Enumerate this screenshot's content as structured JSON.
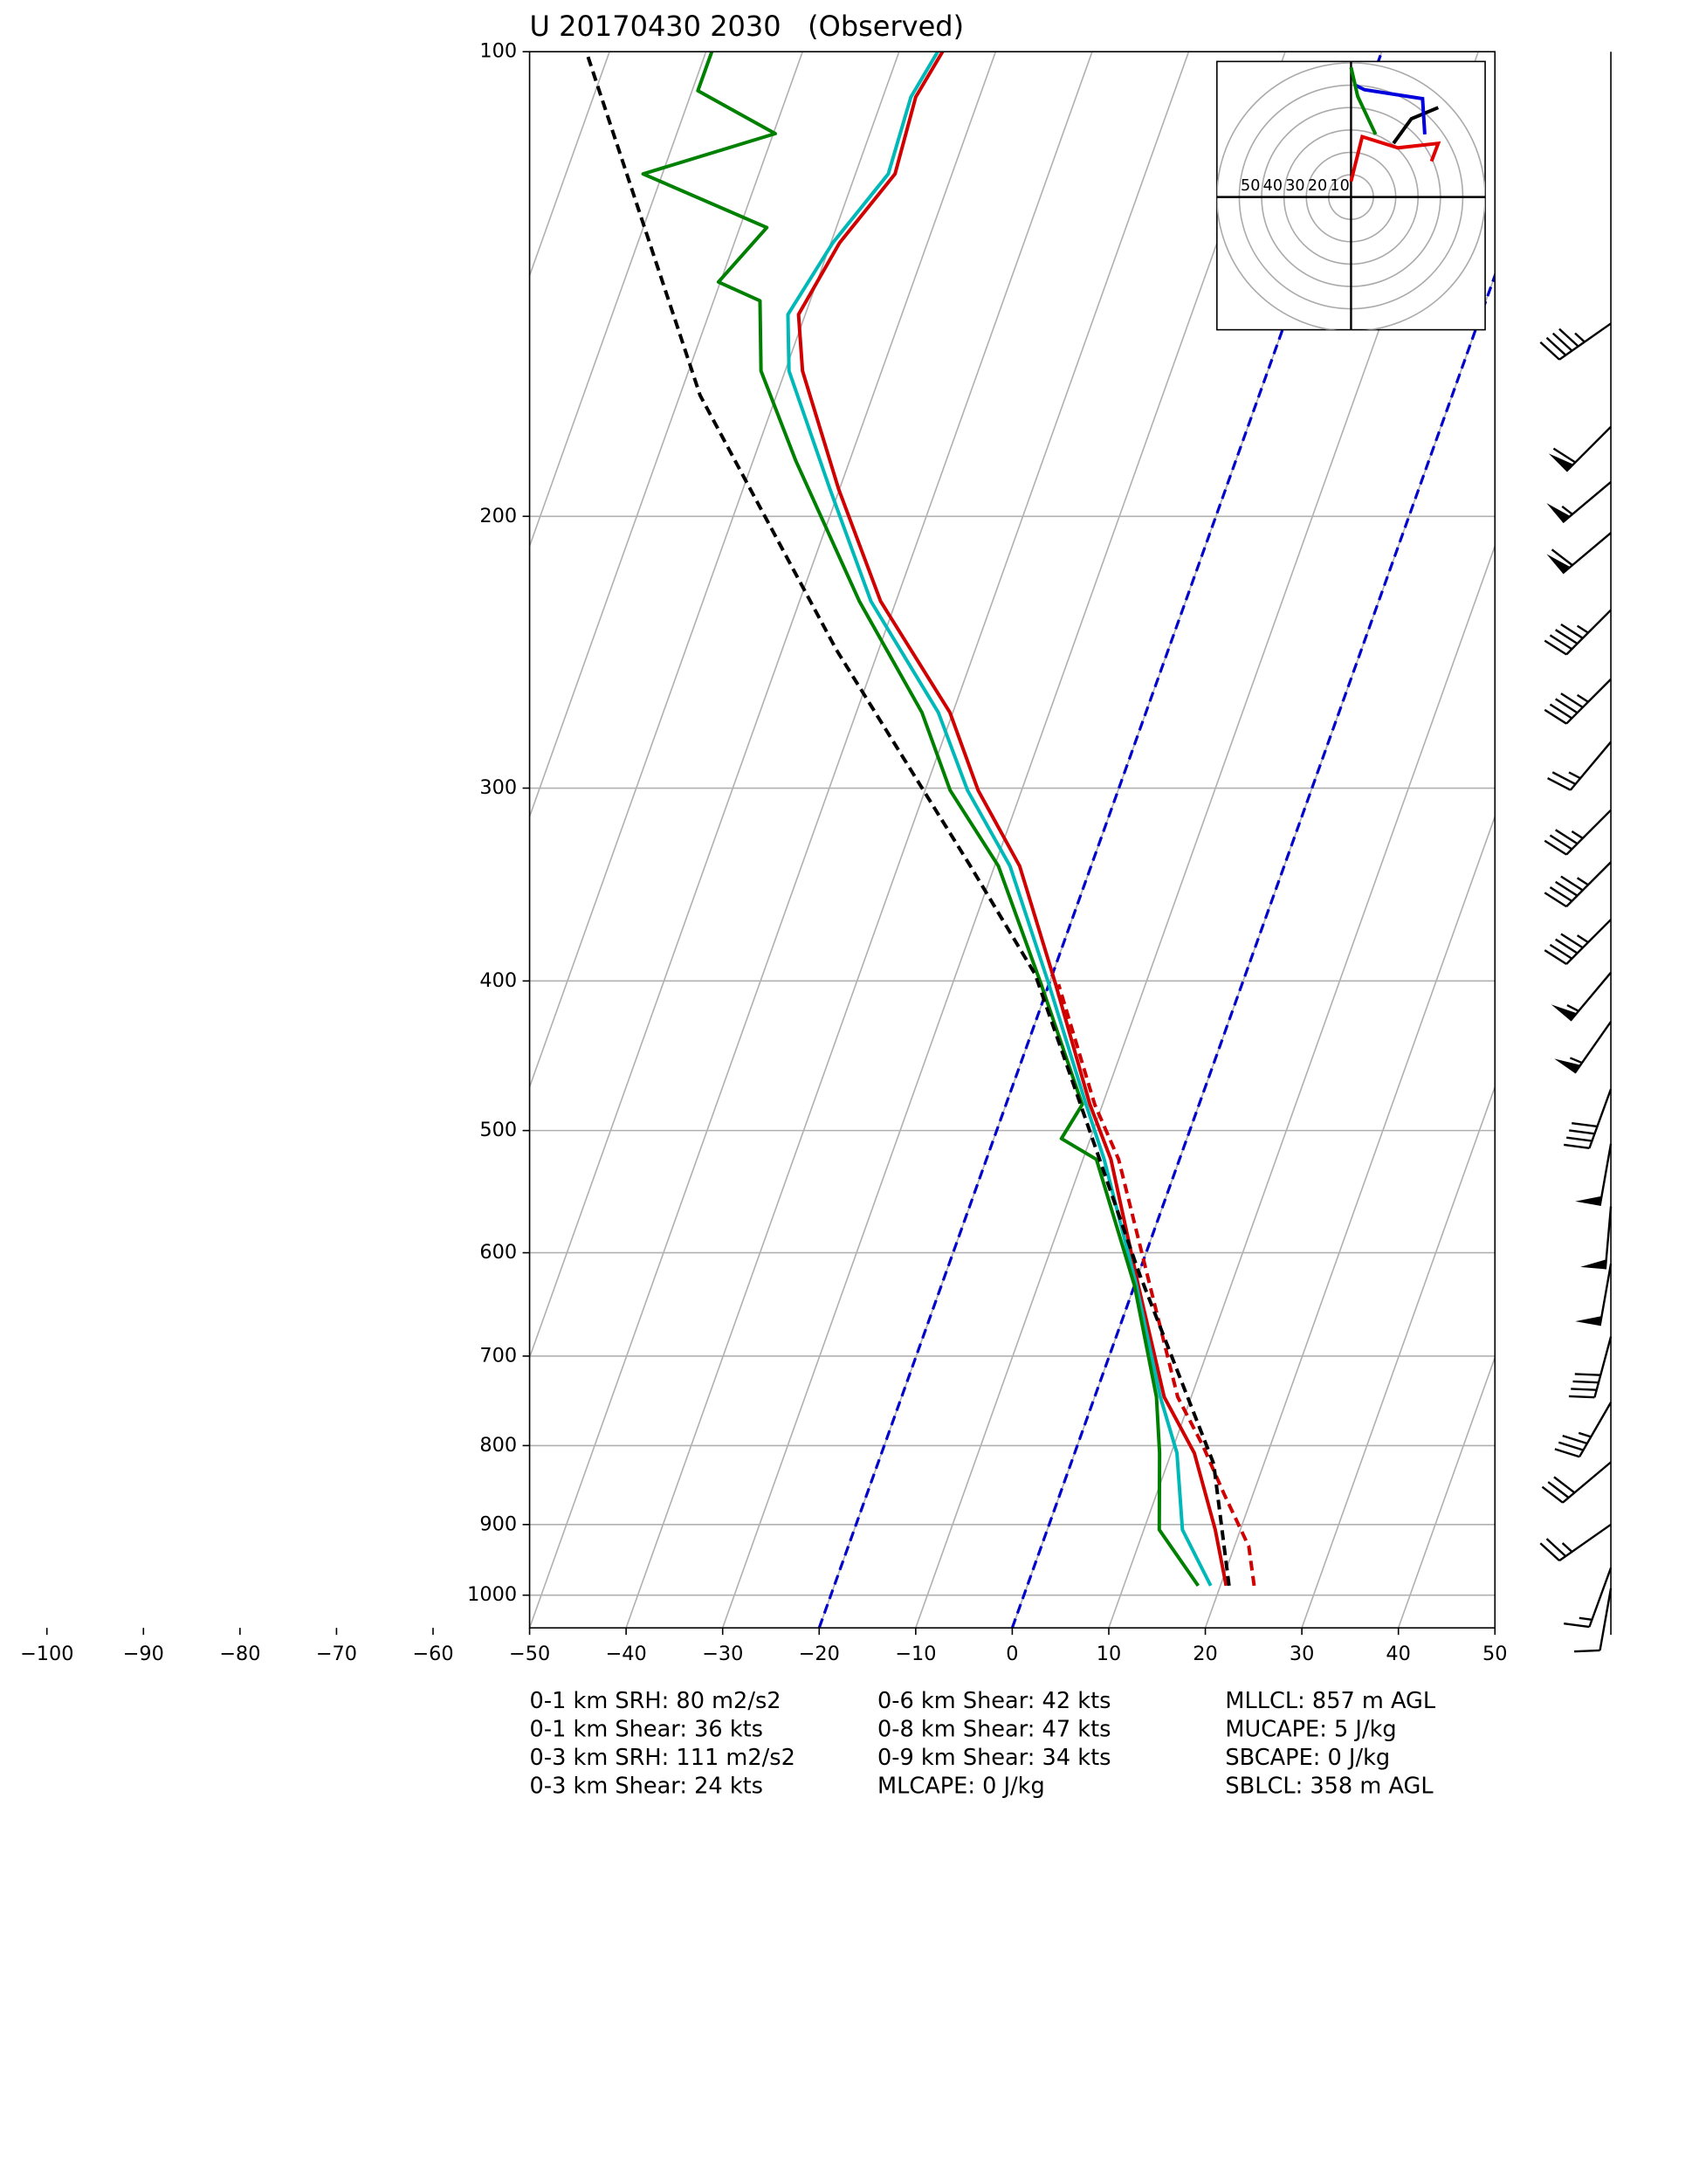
{
  "chart_data": {
    "type": "skewt",
    "title": "U 20170430 2030   (Observed)",
    "ylim": [
      1050,
      100
    ],
    "yticks": [
      100,
      200,
      300,
      400,
      500,
      600,
      700,
      800,
      900,
      1000
    ],
    "xlim": [
      -50,
      50
    ],
    "xticks": [
      {
        "value": -100,
        "label": "−100"
      },
      {
        "value": -90,
        "label": "−90"
      },
      {
        "value": -80,
        "label": "−80"
      },
      {
        "value": -70,
        "label": "−70"
      },
      {
        "value": -60,
        "label": "−60"
      },
      {
        "value": -50,
        "label": "−50"
      },
      {
        "value": -40,
        "label": "−40"
      },
      {
        "value": -30,
        "label": "−30"
      },
      {
        "value": -20,
        "label": "−20"
      },
      {
        "value": -10,
        "label": "−10"
      },
      0,
      10,
      20,
      30,
      40,
      50
    ],
    "grid": true,
    "isotherm_lines": [
      -100,
      -90,
      -80,
      -70,
      -60,
      -50,
      -40,
      -30,
      -20,
      -10,
      0,
      10,
      20,
      30,
      40,
      50,
      60,
      70,
      80,
      90,
      100,
      110,
      120,
      130,
      140
    ],
    "highlight_isotherms": {
      "color": "#0000cc",
      "values": [
        -20,
        0
      ]
    },
    "series": [
      {
        "color": "#d00000",
        "dash": false,
        "pressure": [
          986,
          907,
          809,
          744,
          630,
          522,
          481,
          402,
          337,
          301,
          268,
          227,
          192,
          161,
          148,
          133,
          120,
          107,
          100
        ],
        "values": [
          20.6,
          17.4,
          12.4,
          7.2,
          0.4,
          -7.1,
          -11.3,
          -19.3,
          -27.4,
          -34.5,
          -40.3,
          -51.6,
          -60.1,
          -68.2,
          -70.7,
          -69.1,
          -65.9,
          -66.6,
          -65.5
        ]
      },
      {
        "color": "#d00000",
        "dash": true,
        "pressure": [
          986,
          930,
          860,
          800,
          744,
          630,
          522,
          481,
          402
        ],
        "values": [
          23.5,
          21.5,
          17.0,
          13.0,
          8.6,
          1.6,
          -6.3,
          -10.8,
          -19.0
        ]
      },
      {
        "color": "#00b8b8",
        "dash": false,
        "pressure": [
          986,
          907,
          809,
          744,
          630,
          522,
          481,
          402,
          337,
          301,
          268,
          227,
          192,
          161,
          148,
          133,
          120,
          107,
          100
        ],
        "values": [
          19.0,
          14.0,
          10.6,
          6.8,
          0.2,
          -7.8,
          -11.7,
          -20.0,
          -28.4,
          -35.6,
          -41.5,
          -52.6,
          -61.0,
          -69.6,
          -71.8,
          -69.8,
          -66.6,
          -67.1,
          -66.0
        ]
      },
      {
        "color": "#008000",
        "dash": false,
        "pressure": [
          986,
          907,
          809,
          744,
          630,
          522,
          506,
          481,
          402,
          337,
          301,
          268,
          227,
          184,
          161,
          145,
          141,
          130,
          120,
          113,
          106,
          100
        ],
        "values": [
          17.7,
          11.6,
          8.8,
          6.4,
          0.0,
          -8.6,
          -13.0,
          -12.1,
          -20.8,
          -29.6,
          -37.4,
          -43.2,
          -53.8,
          -65.6,
          -72.5,
          -75.2,
          -80.2,
          -77.2,
          -92.0,
          -79.8,
          -89.4,
          -89.4
        ]
      },
      {
        "color": "#000000",
        "dash": true,
        "pressure": [
          986,
          822,
          617,
          471,
          396,
          337,
          244,
          167,
          100
        ],
        "values": [
          20.9,
          14.8,
          -0.1,
          -13.3,
          -21.8,
          -32.5,
          -54.4,
          -77.9,
          -102.4
        ]
      }
    ],
    "barbs": {
      "pressure": [
        150,
        175,
        190,
        205,
        230,
        255,
        280,
        310,
        335,
        365,
        395,
        425,
        470,
        510,
        560,
        610,
        680,
        750,
        820,
        900,
        960,
        990
      ],
      "speed": [
        45,
        60,
        55,
        60,
        45,
        45,
        25,
        35,
        45,
        45,
        55,
        55,
        40,
        50,
        50,
        50,
        40,
        35,
        30,
        25,
        15,
        10
      ],
      "direction": [
        235,
        225,
        230,
        230,
        225,
        225,
        220,
        225,
        225,
        225,
        220,
        215,
        200,
        190,
        185,
        190,
        195,
        210,
        230,
        235,
        200,
        190
      ]
    },
    "hodograph": {
      "rings": [
        10,
        20,
        30,
        40,
        50,
        60
      ],
      "ring_labels": [
        50,
        40,
        30,
        20,
        10
      ],
      "traces": [
        {
          "color": "#e00000",
          "u": [
            0,
            5,
            21,
            39,
            36
          ],
          "v": [
            7,
            27,
            22,
            24,
            16
          ]
        },
        {
          "color": "#000000",
          "u": [
            19,
            27,
            39
          ],
          "v": [
            24,
            35,
            40
          ]
        },
        {
          "color": "#0000dd",
          "u": [
            33,
            32,
            6,
            2
          ],
          "v": [
            28,
            44,
            48,
            50
          ]
        },
        {
          "color": "#008000",
          "u": [
            11,
            3,
            0
          ],
          "v": [
            28,
            45,
            58
          ]
        }
      ]
    },
    "annotations": [
      [
        "0-1 km SRH: 80 m2/s2",
        "0-1 km Shear: 36 kts",
        "0-3 km SRH: 111 m2/s2",
        "0-3 km Shear: 24 kts"
      ],
      [
        "0-6 km Shear: 42 kts",
        "0-8 km Shear: 47 kts",
        "0-9 km Shear: 34 kts",
        "MLCAPE: 0 J/kg"
      ],
      [
        "MLLCL: 857 m AGL",
        "MUCAPE: 5 J/kg",
        "SBCAPE: 0 J/kg",
        "SBLCL: 358 m AGL"
      ]
    ]
  }
}
